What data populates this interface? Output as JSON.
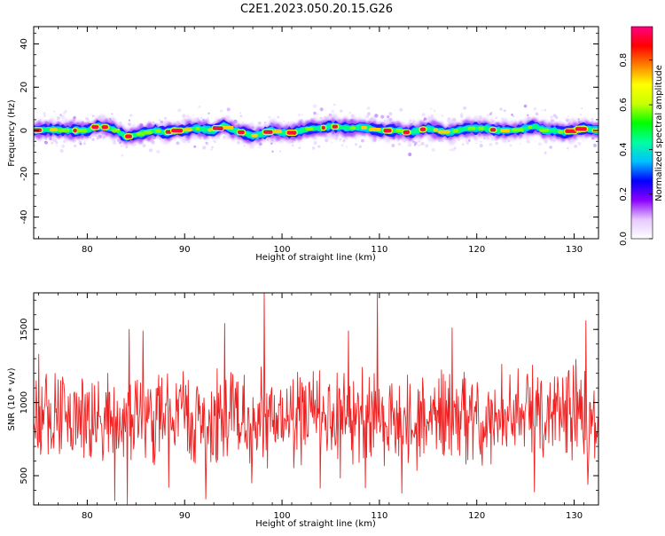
{
  "title": "C2E1.2023.050.20.15.G26",
  "chart_data": [
    {
      "type": "heatmap",
      "xlabel": "Height of straight line (km)",
      "ylabel": "Frequency (Hz)",
      "xlim": [
        74.5,
        132.5
      ],
      "ylim": [
        -50,
        48
      ],
      "xticks": [
        80,
        90,
        100,
        110,
        120,
        130
      ],
      "yticks": [
        -40,
        -20,
        0,
        20,
        40
      ],
      "colorbar": {
        "label": "Normalized spectral amplitude",
        "range": [
          0,
          0.95
        ],
        "ticks": [
          0.0,
          0.2,
          0.4,
          0.6,
          0.8
        ],
        "tick_labels": [
          "0.0",
          "0.2",
          "0.4",
          "0.6",
          "0.8"
        ],
        "colormap": [
          "#ffffff",
          "#e6c8ff",
          "#8c00ff",
          "#0000ff",
          "#00c0ff",
          "#00ffa0",
          "#00ff00",
          "#c8ff00",
          "#ffff00",
          "#ff8000",
          "#ff0000",
          "#ff0080"
        ]
      },
      "ridge_center_hz": [
        {
          "x": 74.5,
          "y": 0
        },
        {
          "x": 76,
          "y": 0.5
        },
        {
          "x": 78,
          "y": 0
        },
        {
          "x": 80,
          "y": 0
        },
        {
          "x": 81,
          "y": 2
        },
        {
          "x": 82,
          "y": 1.5
        },
        {
          "x": 83,
          "y": 0
        },
        {
          "x": 84,
          "y": -3
        },
        {
          "x": 85,
          "y": -2
        },
        {
          "x": 86,
          "y": -1
        },
        {
          "x": 87,
          "y": 0
        },
        {
          "x": 88,
          "y": -1
        },
        {
          "x": 89,
          "y": 0
        },
        {
          "x": 90,
          "y": 0
        },
        {
          "x": 91,
          "y": 1
        },
        {
          "x": 92,
          "y": 0.5
        },
        {
          "x": 93,
          "y": 0
        },
        {
          "x": 94,
          "y": 2.5
        },
        {
          "x": 95,
          "y": 0
        },
        {
          "x": 96,
          "y": -1
        },
        {
          "x": 97,
          "y": -2.5
        },
        {
          "x": 98,
          "y": -1.5
        },
        {
          "x": 99,
          "y": 0
        },
        {
          "x": 100,
          "y": -1
        },
        {
          "x": 101,
          "y": -1
        },
        {
          "x": 102,
          "y": 0
        },
        {
          "x": 103,
          "y": 1
        },
        {
          "x": 104,
          "y": 1
        },
        {
          "x": 105,
          "y": 2
        },
        {
          "x": 106,
          "y": 1.5
        },
        {
          "x": 107,
          "y": 1
        },
        {
          "x": 108,
          "y": 1.5
        },
        {
          "x": 109,
          "y": 1
        },
        {
          "x": 110,
          "y": 0
        },
        {
          "x": 112,
          "y": 0
        },
        {
          "x": 113,
          "y": -1
        },
        {
          "x": 114,
          "y": 0
        },
        {
          "x": 115,
          "y": 1
        },
        {
          "x": 116,
          "y": 0
        },
        {
          "x": 117,
          "y": -1
        },
        {
          "x": 118,
          "y": 0
        },
        {
          "x": 119,
          "y": 1
        },
        {
          "x": 120,
          "y": 1
        },
        {
          "x": 121,
          "y": 1
        },
        {
          "x": 122,
          "y": 0
        },
        {
          "x": 124,
          "y": 0
        },
        {
          "x": 125,
          "y": 1
        },
        {
          "x": 126,
          "y": 2
        },
        {
          "x": 127,
          "y": 0
        },
        {
          "x": 128,
          "y": 0
        },
        {
          "x": 129,
          "y": -1
        },
        {
          "x": 130,
          "y": 0
        },
        {
          "x": 131,
          "y": 1
        },
        {
          "x": 132.5,
          "y": 0
        }
      ]
    },
    {
      "type": "line",
      "xlabel": "Height of straight line (km)",
      "ylabel": "SNR (10 * v/v)",
      "xlim": [
        74.5,
        132.5
      ],
      "ylim": [
        300,
        1750
      ],
      "xticks": [
        80,
        90,
        100,
        110,
        120,
        130
      ],
      "yticks": [
        500,
        1000,
        1500
      ],
      "series": [
        {
          "color": "#ee2222",
          "x_range": [
            74.5,
            132.5
          ],
          "sample_count": 900,
          "typical_range": [
            600,
            1250
          ],
          "peaks": [
            {
              "x": 98.2,
              "y": 1750
            },
            {
              "x": 109.8,
              "y": 1750
            },
            {
              "x": 94.1,
              "y": 1540
            },
            {
              "x": 84.3,
              "y": 1500
            },
            {
              "x": 85.7,
              "y": 1490
            },
            {
              "x": 131.2,
              "y": 1560
            },
            {
              "x": 117.5,
              "y": 1510
            },
            {
              "x": 106.8,
              "y": 1490
            }
          ],
          "troughs": [
            {
              "x": 84.1,
              "y": 300
            },
            {
              "x": 82.8,
              "y": 330
            },
            {
              "x": 112.3,
              "y": 380
            },
            {
              "x": 125.9,
              "y": 390
            },
            {
              "x": 131.4,
              "y": 440
            },
            {
              "x": 88.4,
              "y": 420
            },
            {
              "x": 96.9,
              "y": 450
            }
          ]
        }
      ]
    }
  ]
}
